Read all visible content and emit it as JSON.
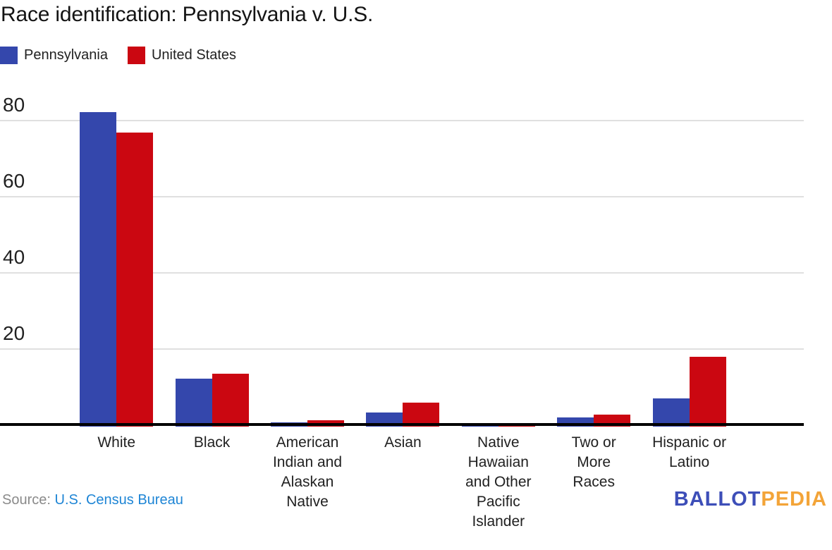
{
  "title": "Race identification: Pennsylvania v. U.S.",
  "chart_data": {
    "type": "bar",
    "title": "Race identification: Pennsylvania v. U.S.",
    "unit": "percent",
    "categories": [
      "White",
      "Black",
      "American Indian and Alaskan Native",
      "Asian",
      "Native Hawaiian and Other Pacific Islander",
      "Two or More Races",
      "Hispanic or Latino"
    ],
    "x_tick_labels": [
      "White",
      "Black",
      "American\nIndian and\nAlaskan\nNative",
      "Asian",
      "Native\nHawaiian\nand Other\nPacific\nIslander",
      "Two or\nMore\nRaces",
      "Hispanic or\nLatino"
    ],
    "series": [
      {
        "name": "Pennsylvania",
        "color": "#3447AC",
        "values": [
          82.2,
          12.2,
          0.8,
          3.4,
          0.1,
          2.0,
          7.1
        ]
      },
      {
        "name": "United States",
        "color": "#CB0711",
        "values": [
          76.8,
          13.6,
          1.3,
          5.9,
          0.6,
          2.8,
          18.0
        ]
      }
    ],
    "yticks": [
      20,
      40,
      60,
      80
    ],
    "ytick_labels": [
      "20",
      "40",
      "60",
      "80"
    ],
    "ylim": [
      0,
      85
    ],
    "grid": true,
    "legend_position": "top-left",
    "gridline_color": "#e0e0e0",
    "axis_color": "#000000"
  },
  "footer": {
    "source_label": "Source:",
    "source_link": "U.S. Census Bureau",
    "source_link_color": "#1E85D5",
    "logo": {
      "part1": "BALLOT",
      "part2": "PEDIA",
      "color1": "#3D4EB8",
      "color2": "#F3A438"
    }
  }
}
